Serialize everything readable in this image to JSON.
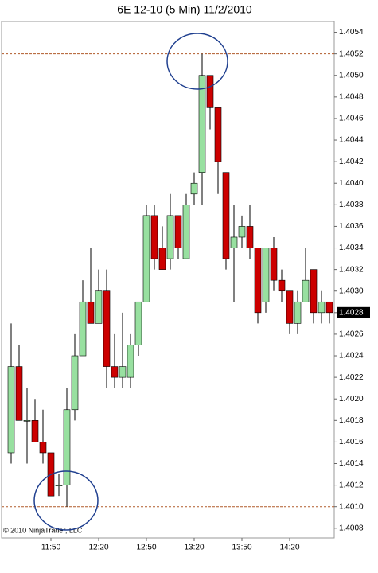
{
  "chart_data": {
    "type": "candlestick",
    "title": "6E 12-10 (5 Min)  11/2/2010",
    "footer": "© 2010 NinjaTrader, LLC",
    "categories": [
      null,
      null,
      null,
      null,
      null,
      "11:50",
      null,
      null,
      null,
      null,
      null,
      "12:20",
      null,
      null,
      null,
      null,
      null,
      "12:50",
      null,
      null,
      null,
      null,
      null,
      "13:20",
      null,
      null,
      null,
      null,
      null,
      "13:50",
      null,
      null,
      null,
      null,
      null,
      "14:20",
      null,
      null,
      null,
      null,
      null
    ],
    "open": [
      1.4015,
      1.4023,
      1.4018,
      1.4018,
      1.4016,
      1.4015,
      1.4012,
      1.4012,
      1.4019,
      1.4024,
      1.4029,
      1.4027,
      1.403,
      1.4023,
      1.4022,
      1.4022,
      1.4025,
      1.4029,
      1.4037,
      1.4034,
      1.4033,
      1.4037,
      1.4033,
      1.4039,
      1.4041,
      1.405,
      1.4047,
      1.4041,
      1.4034,
      1.4035,
      1.4036,
      1.4034,
      1.4029,
      1.4034,
      1.4031,
      1.403,
      1.4027,
      1.4029,
      1.4032,
      1.4028,
      1.4029
    ],
    "high": [
      1.4027,
      1.4025,
      1.4021,
      1.402,
      1.4019,
      1.4015,
      1.4013,
      1.4021,
      1.4026,
      1.4031,
      1.4034,
      1.4032,
      1.4032,
      1.4026,
      1.4028,
      1.4026,
      1.4029,
      1.4038,
      1.4038,
      1.4036,
      1.4039,
      1.4037,
      1.4039,
      1.4041,
      1.4052,
      1.405,
      1.4047,
      1.4041,
      1.4038,
      1.4037,
      1.4038,
      1.4034,
      1.4034,
      1.4035,
      1.4032,
      1.403,
      1.403,
      1.4034,
      1.4032,
      1.403,
      1.4029
    ],
    "low": [
      1.4014,
      1.4018,
      1.4014,
      1.4016,
      1.4014,
      1.4011,
      1.4011,
      1.401,
      1.4018,
      1.4024,
      1.4027,
      1.4027,
      1.4021,
      1.4021,
      1.4021,
      1.4021,
      1.4024,
      1.4029,
      1.4032,
      1.4032,
      1.4032,
      1.4033,
      1.4033,
      1.4038,
      1.4038,
      1.4045,
      1.4039,
      1.4032,
      1.4029,
      1.4034,
      1.4033,
      1.4027,
      1.4028,
      1.403,
      1.4029,
      1.4026,
      1.4026,
      1.4029,
      1.4027,
      1.4027,
      1.4027
    ],
    "close": [
      1.4023,
      1.4018,
      1.4018,
      1.4016,
      1.4015,
      1.4011,
      1.4012,
      1.4019,
      1.4024,
      1.4029,
      1.4027,
      1.403,
      1.4023,
      1.4022,
      1.4023,
      1.4025,
      1.4029,
      1.4037,
      1.4033,
      1.4032,
      1.4037,
      1.4034,
      1.4038,
      1.404,
      1.405,
      1.4047,
      1.4042,
      1.4033,
      1.4035,
      1.4036,
      1.4034,
      1.4028,
      1.4034,
      1.4031,
      1.403,
      1.4027,
      1.4029,
      1.4031,
      1.4028,
      1.4029,
      1.4028
    ],
    "up_color": "#98e0a0",
    "down_color": "#cc0000",
    "ylim": [
      1.40071,
      1.4055
    ],
    "yticks": [
      1.4008,
      {
        "value": 1.401,
        "label": "1.4010"
      },
      1.4012,
      1.4014,
      1.4016,
      1.4018,
      {
        "value": 1.402,
        "label": "1.4020"
      },
      1.4022,
      1.4024,
      1.4026,
      1.4028,
      {
        "value": 1.403,
        "label": "1.4030"
      },
      1.4032,
      1.4034,
      1.4036,
      1.4038,
      {
        "value": 1.404,
        "label": "1.4040"
      },
      1.4042,
      1.4044,
      1.4046,
      1.4048,
      {
        "value": 1.405,
        "label": "1.4050"
      },
      1.4052,
      1.4054
    ],
    "hlines": [
      1.4052,
      1.401
    ],
    "last_price": 1.4028
  }
}
